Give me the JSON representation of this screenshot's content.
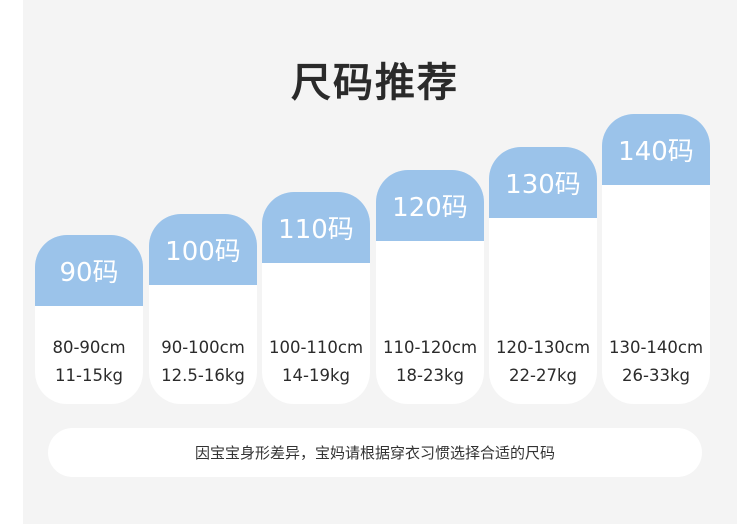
{
  "title": "尺码推荐",
  "colors": {
    "header": "#9bc3ea",
    "background": "#f4f4f4"
  },
  "sizes": [
    {
      "label": "90码",
      "height": "80-90cm",
      "weight": "11-15kg"
    },
    {
      "label": "100码",
      "height": "90-100cm",
      "weight": "12.5-16kg"
    },
    {
      "label": "110码",
      "height": "100-110cm",
      "weight": "14-19kg"
    },
    {
      "label": "120码",
      "height": "110-120cm",
      "weight": "18-23kg"
    },
    {
      "label": "130码",
      "height": "120-130cm",
      "weight": "22-27kg"
    },
    {
      "label": "140码",
      "height": "130-140cm",
      "weight": "26-33kg"
    }
  ],
  "note": "因宝宝身形差异，宝妈请根据穿衣习惯选择合适的尺码"
}
